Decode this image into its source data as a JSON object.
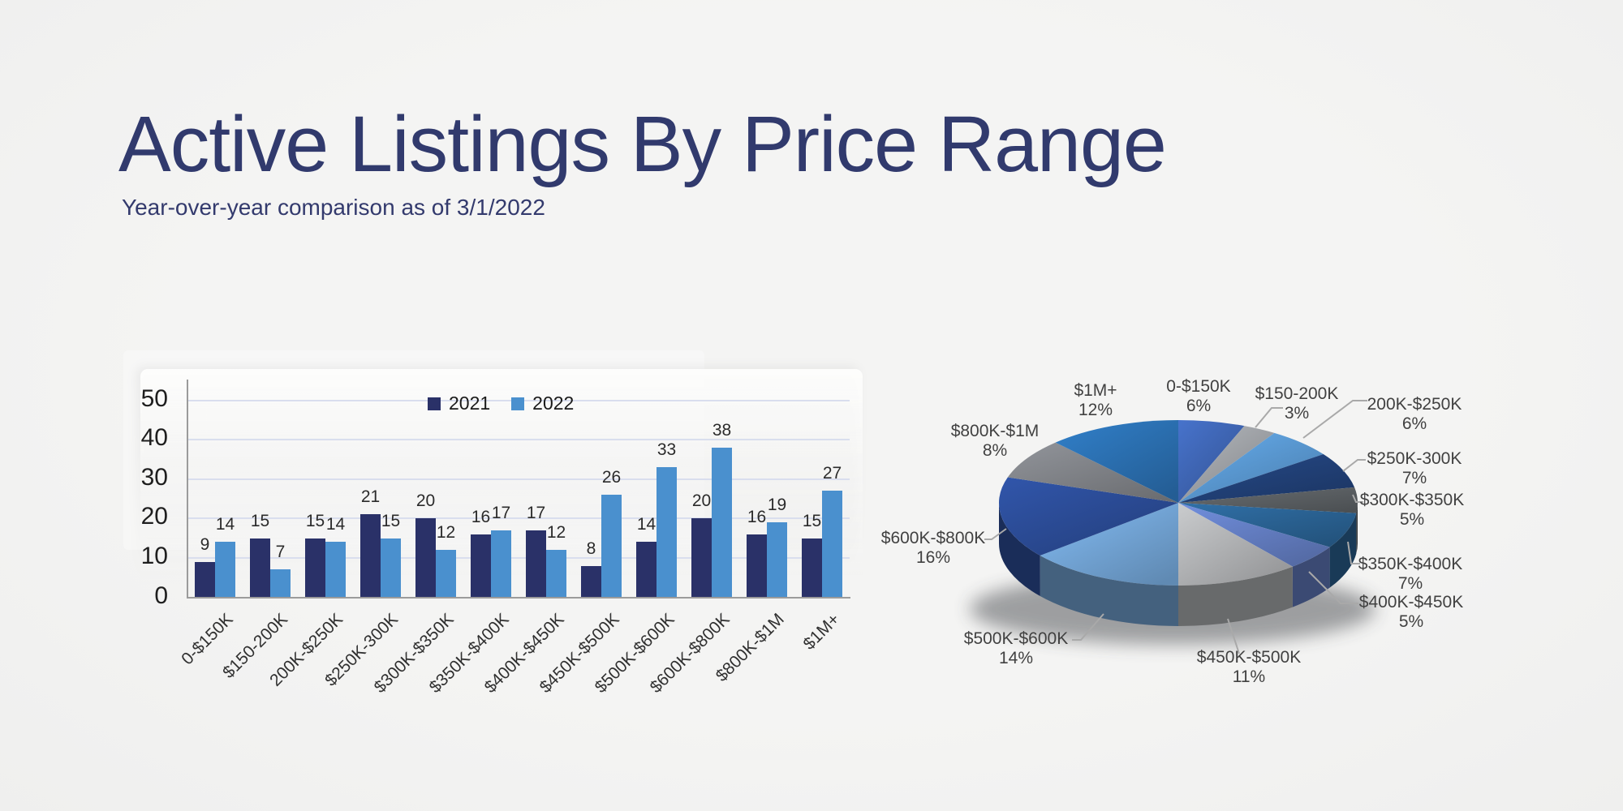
{
  "slide": {
    "title": "Active Listings By Price Range",
    "subtitle": "Year-over-year comparison as of 3/1/2022"
  },
  "chart_data": [
    {
      "type": "bar",
      "title": "",
      "categories": [
        "0-$150K",
        "$150-200K",
        "200K-$250K",
        "$250K-300K",
        "$300K-$350K",
        "$350K-$400K",
        "$400K-$450K",
        "$450K-$500K",
        "$500K-$600K",
        "$600K-$800K",
        "$800K-$1M",
        "$1M+"
      ],
      "series": [
        {
          "name": "2021",
          "values": [
            9,
            15,
            15,
            21,
            20,
            16,
            17,
            8,
            14,
            20,
            16,
            15
          ],
          "color": "#2a3168"
        },
        {
          "name": "2022",
          "values": [
            14,
            7,
            14,
            15,
            12,
            17,
            12,
            26,
            33,
            38,
            19,
            27
          ],
          "color": "#4a90ce"
        }
      ],
      "ylim": [
        0,
        50
      ],
      "yticks": [
        0,
        10,
        20,
        30,
        40,
        50
      ],
      "grid": true,
      "legend_position": "top-center",
      "value_labels": true
    },
    {
      "type": "pie",
      "style": "3d",
      "unit": "%",
      "labels": [
        "0-$150K",
        "$150-200K",
        "200K-$250K",
        "$250K-300K",
        "$300K-$350K",
        "$350K-$400K",
        "$400K-$450K",
        "$450K-$500K",
        "$500K-$600K",
        "$600K-$800K",
        "$800K-$1M",
        "$1M+"
      ],
      "values": [
        6,
        3,
        6,
        7,
        5,
        7,
        5,
        11,
        14,
        16,
        8,
        12
      ],
      "colors": [
        "#3f67b6",
        "#a2a5aa",
        "#5b9bd5",
        "#22427a",
        "#5d6165",
        "#2b6496",
        "#6580c6",
        "#b4b6b8",
        "#75a8da",
        "#2c4d99",
        "#82858a",
        "#2c72b4"
      ],
      "leader_color": "#a9a9a9"
    }
  ]
}
